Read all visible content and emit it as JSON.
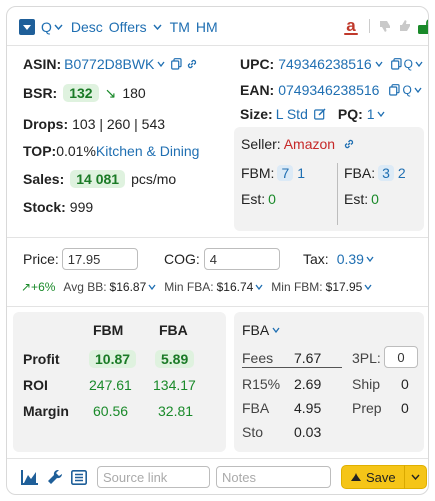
{
  "header": {
    "q_label": "Q",
    "desc_label": "Desc",
    "offers_label": "Offers",
    "tm_label": "TM",
    "hm_label": "HM",
    "amazon_letter": "a"
  },
  "left": {
    "asin_label": "ASIN:",
    "asin_value": "B0772D8BWK",
    "bsr_label": "BSR:",
    "bsr_value": "132",
    "bsr_arrow": "↘",
    "bsr_prev": "180",
    "drops_label": "Drops:",
    "drops_value": "103 | 260 | 543",
    "top_label": "TOP:",
    "top_percent": "0.01%",
    "top_category": "Kitchen & Dining",
    "sales_label": "Sales:",
    "sales_value": "14 081",
    "sales_unit": "pcs/mo",
    "stock_label": "Stock:",
    "stock_value": "999"
  },
  "right": {
    "upc_label": "UPC:",
    "upc_value": "749346238516",
    "ean_label": "EAN:",
    "ean_value": "0749346238516",
    "size_label": "Size:",
    "size_value": "L Std",
    "pq_label": "PQ:",
    "pq_value": "1"
  },
  "seller": {
    "label": "Seller:",
    "name": "Amazon",
    "fbm_label": "FBM:",
    "fbm_count": "7",
    "fbm_count2": "1",
    "fba_label": "FBA:",
    "fba_count": "3",
    "fba_count2": "2",
    "est_label_left": "Est:",
    "est_left": "0",
    "est_label_right": "Est:",
    "est_right": "0"
  },
  "pricing": {
    "price_label": "Price:",
    "price_value": "17.95",
    "cog_label": "COG:",
    "cog_value": "4",
    "tax_label": "Tax:",
    "tax_value": "0.39",
    "trend": "↗+6%",
    "avg_bb_label": "Avg BB:",
    "avg_bb": "$16.87",
    "min_fba_label": "Min FBA:",
    "min_fba": "$16.74",
    "min_fbm_label": "Min FBM:",
    "min_fbm": "$17.95"
  },
  "profit_table": {
    "col_fbm": "FBM",
    "col_fba": "FBA",
    "rows": [
      {
        "label": "Profit",
        "fbm": "10.87",
        "fba": "5.89"
      },
      {
        "label": "ROI",
        "fbm": "247.61",
        "fba": "134.17"
      },
      {
        "label": "Margin",
        "fbm": "60.56",
        "fba": "32.81"
      }
    ]
  },
  "fees": {
    "mode": "FBA",
    "fees_label": "Fees",
    "fees_value": "7.67",
    "tpl_label": "3PL:",
    "tpl_value": "0",
    "r15_label": "R15%",
    "r15_value": "2.69",
    "ship_label": "Ship",
    "ship_value": "0",
    "fba_label": "FBA",
    "fba_value": "4.95",
    "prep_label": "Prep",
    "prep_value": "0",
    "sto_label": "Sto",
    "sto_value": "0.03"
  },
  "footer": {
    "source_placeholder": "Source link",
    "notes_placeholder": "Notes",
    "save_label": "Save"
  },
  "colors": {
    "accent": "#1f6fb2",
    "green": "#1a8a2a",
    "save": "#f5c518"
  }
}
